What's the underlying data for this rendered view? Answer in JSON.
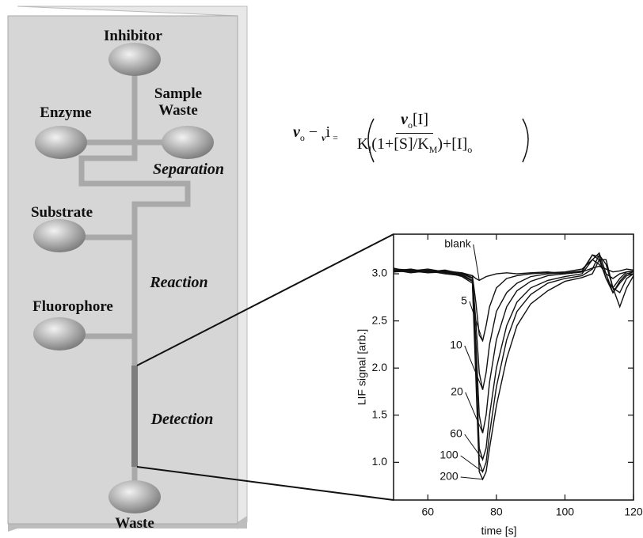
{
  "diagram": {
    "reservoirs": {
      "inhibitor": "Inhibitor",
      "enzyme": "Enzyme",
      "sample_waste": "Sample Waste",
      "substrate": "Substrate",
      "fluorophore": "Fluorophore",
      "waste": "Waste"
    },
    "zones": {
      "separation": "Separation",
      "reaction": "Reaction",
      "detection": "Detection"
    },
    "equation": {
      "lhs": [
        "v",
        "o",
        " − ",
        "v",
        "i",
        " ="
      ],
      "numerator": [
        "v",
        "o",
        "[I]"
      ],
      "denominator": [
        "K",
        "I",
        "(1+[S]/K",
        "M",
        ")+[I]",
        "o"
      ]
    }
  },
  "chart_data": {
    "type": "line",
    "x_label": "time [s]",
    "y_label": "LIF signal [arb.]",
    "line_color": "#111",
    "x": [
      50,
      55,
      60,
      65,
      70,
      73,
      74,
      75,
      76,
      77,
      78,
      80,
      83,
      86,
      90,
      95,
      100,
      105,
      108,
      110,
      112,
      114,
      116,
      118,
      120
    ],
    "series": [
      {
        "name": "blank",
        "values": [
          3.02,
          3.03,
          3.01,
          3.02,
          3.0,
          2.98,
          2.95,
          2.93,
          2.95,
          2.97,
          2.98,
          3.0,
          3.01,
          3.0,
          3.01,
          3.02,
          3.0,
          3.02,
          3.06,
          3.08,
          3.05,
          3.02,
          3.03,
          3.05,
          3.04
        ]
      },
      {
        "name": "5",
        "values": [
          3.05,
          3.04,
          3.02,
          3.03,
          3.01,
          2.98,
          2.7,
          2.35,
          2.29,
          2.45,
          2.65,
          2.85,
          2.95,
          2.98,
          3.0,
          3.01,
          3.02,
          3.05,
          3.15,
          3.1,
          3.0,
          2.95,
          3.0,
          3.02,
          3.03
        ]
      },
      {
        "name": "10",
        "values": [
          3.04,
          3.03,
          3.05,
          3.02,
          3.0,
          2.96,
          2.5,
          1.95,
          1.77,
          1.95,
          2.25,
          2.6,
          2.8,
          2.9,
          2.97,
          3.0,
          3.01,
          3.03,
          3.2,
          3.15,
          2.95,
          2.85,
          2.95,
          3.02,
          3.03
        ]
      },
      {
        "name": "20",
        "values": [
          3.03,
          3.05,
          3.02,
          3.04,
          3.0,
          2.95,
          2.3,
          1.5,
          1.31,
          1.5,
          1.85,
          2.3,
          2.65,
          2.82,
          2.92,
          2.98,
          3.0,
          3.02,
          3.2,
          3.18,
          2.95,
          2.8,
          2.92,
          3.0,
          3.02
        ]
      },
      {
        "name": "60",
        "values": [
          3.06,
          3.02,
          3.04,
          3.01,
          2.99,
          2.93,
          2.1,
          1.15,
          1.03,
          1.15,
          1.5,
          2.0,
          2.45,
          2.7,
          2.85,
          2.93,
          2.97,
          3.0,
          3.15,
          3.22,
          3.0,
          2.8,
          2.9,
          2.98,
          3.0
        ]
      },
      {
        "name": "100",
        "values": [
          3.02,
          3.04,
          3.03,
          3.0,
          2.98,
          2.92,
          2.0,
          1.0,
          0.9,
          1.0,
          1.3,
          1.8,
          2.3,
          2.6,
          2.78,
          2.9,
          2.95,
          2.98,
          3.05,
          3.2,
          3.1,
          2.85,
          2.8,
          2.95,
          3.0
        ]
      },
      {
        "name": "200",
        "values": [
          3.04,
          3.01,
          3.03,
          3.02,
          2.97,
          2.9,
          1.9,
          0.9,
          0.82,
          0.9,
          1.15,
          1.6,
          2.1,
          2.45,
          2.68,
          2.82,
          2.92,
          2.96,
          3.0,
          3.15,
          3.15,
          2.85,
          2.65,
          2.85,
          2.98
        ]
      }
    ],
    "xlim": [
      50,
      120
    ],
    "xticks": [
      60,
      80,
      100,
      120
    ],
    "ylim": [
      0.6,
      3.42
    ],
    "yticks": [
      {
        "value": 1,
        "label": "1.0"
      },
      1.5,
      {
        "value": 2,
        "label": "2.0"
      },
      2.5,
      {
        "value": 3,
        "label": "3.0"
      }
    ]
  }
}
